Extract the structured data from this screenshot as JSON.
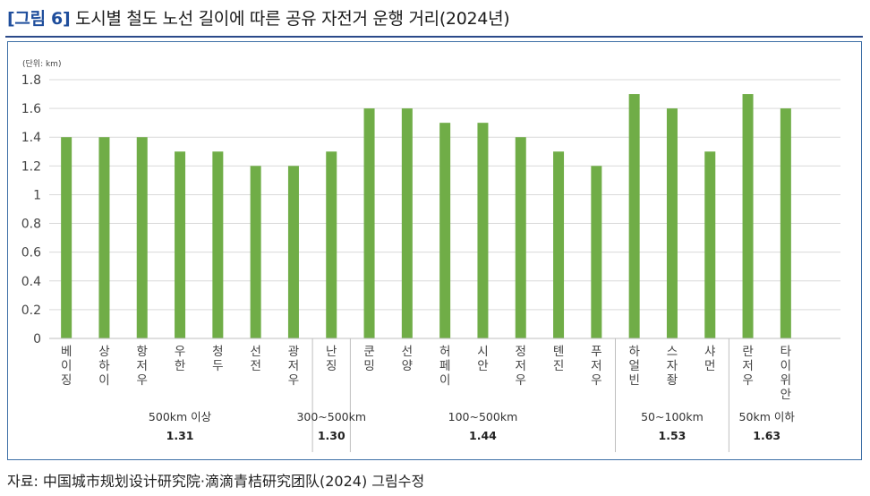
{
  "header": {
    "tag": "[그림 6]",
    "title": "도시별 철도 노선 길이에 따른 공유 자전거 운행 거리(2024년)"
  },
  "source": "자료: 中国城市规划设计研究院·滴滴青桔研究团队(2024) 그림수정",
  "chart_data": {
    "type": "bar",
    "unit_label": "(단위: km)",
    "ylim": [
      0,
      1.8
    ],
    "yticks": [
      "0",
      "0.2",
      "0.4",
      "0.6",
      "0.8",
      "1",
      "1.2",
      "1.4",
      "1.6",
      "1.8"
    ],
    "grid": true,
    "bar_color": "#70ad47",
    "categories": [
      "베이징",
      "상하이",
      "항저우",
      "우한",
      "청두",
      "선전",
      "광저우",
      "난징",
      "쿤밍",
      "선양",
      "허페이",
      "시안",
      "정저우",
      "톈진",
      "푸저우",
      "하얼빈",
      "스자좡",
      "샤먼",
      "란저우",
      "타이위안"
    ],
    "values": [
      1.4,
      1.4,
      1.4,
      1.3,
      1.3,
      1.2,
      1.2,
      1.3,
      1.6,
      1.6,
      1.5,
      1.5,
      1.4,
      1.3,
      1.2,
      1.7,
      1.6,
      1.3,
      1.7,
      1.6
    ],
    "groups": [
      {
        "label": "500km 이상",
        "avg": "1.31",
        "start": 0,
        "end": 6
      },
      {
        "label": "300~500km",
        "avg": "1.30",
        "start": 7,
        "end": 7
      },
      {
        "label": "100~500km",
        "avg": "1.44",
        "start": 8,
        "end": 14
      },
      {
        "label": "50~100km",
        "avg": "1.53",
        "start": 15,
        "end": 17
      },
      {
        "label": "50km 이하",
        "avg": "1.63",
        "start": 18,
        "end": 19
      }
    ]
  }
}
